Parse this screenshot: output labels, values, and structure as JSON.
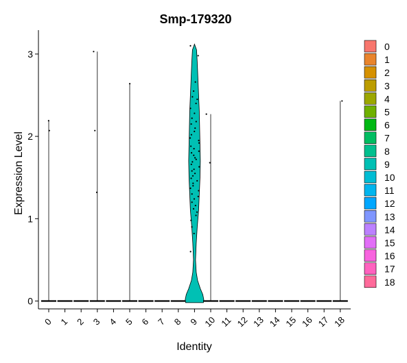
{
  "chart_data": {
    "type": "violin",
    "title": "Smp-179320",
    "xlabel": "Identity",
    "ylabel": "Expression Level",
    "ylim": [
      -0.1,
      3.3
    ],
    "yticks": [
      0,
      1,
      2,
      3
    ],
    "grid": false,
    "legend_position": "right",
    "categories": [
      "0",
      "1",
      "2",
      "3",
      "4",
      "5",
      "6",
      "7",
      "8",
      "9",
      "10",
      "11",
      "12",
      "13",
      "14",
      "15",
      "16",
      "17",
      "18"
    ],
    "colors": [
      "#F8766D",
      "#E9842C",
      "#D69100",
      "#BC9D00",
      "#9CA700",
      "#6FB000",
      "#00B813",
      "#00BD61",
      "#00C08E",
      "#00C0B4",
      "#00BDD4",
      "#00B5EE",
      "#00A7FF",
      "#7F96FF",
      "#BC81FF",
      "#E26EF7",
      "#F863DF",
      "#FF62BF",
      "#FF6A9A"
    ],
    "violins": [
      {
        "category": "0",
        "max": 2.19,
        "points": [
          2.19,
          2.07
        ]
      },
      {
        "category": "1",
        "max": 0,
        "points": []
      },
      {
        "category": "2",
        "max": 0,
        "points": []
      },
      {
        "category": "3",
        "max": 3.03,
        "points": [
          3.03,
          2.07,
          1.32
        ]
      },
      {
        "category": "4",
        "max": 0,
        "points": []
      },
      {
        "category": "5",
        "max": 2.64,
        "points": [
          2.64
        ]
      },
      {
        "category": "6",
        "max": 0,
        "points": []
      },
      {
        "category": "7",
        "max": 0,
        "points": []
      },
      {
        "category": "8",
        "max": 0,
        "points": []
      },
      {
        "category": "9",
        "max": 3.12,
        "points": [
          3.1,
          2.98,
          2.66,
          2.55,
          2.48,
          2.45,
          2.4,
          2.34,
          2.28,
          2.22,
          2.18,
          2.15,
          2.1,
          2.06,
          2.02,
          1.98,
          1.95,
          1.92,
          1.88,
          1.85,
          1.82,
          1.8,
          1.77,
          1.74,
          1.72,
          1.69,
          1.66,
          1.63,
          1.6,
          1.58,
          1.55,
          1.52,
          1.49,
          1.46,
          1.43,
          1.4,
          1.37,
          1.34,
          1.3,
          1.27,
          1.24,
          1.2,
          1.16,
          1.12,
          1.08,
          1.04,
          0.98,
          0.9,
          0.82,
          0.6
        ]
      },
      {
        "category": "10",
        "max": 2.27,
        "points": [
          2.27,
          1.68
        ]
      },
      {
        "category": "11",
        "max": 0,
        "points": []
      },
      {
        "category": "12",
        "max": 0,
        "points": []
      },
      {
        "category": "13",
        "max": 0,
        "points": []
      },
      {
        "category": "14",
        "max": 0,
        "points": []
      },
      {
        "category": "15",
        "max": 0,
        "points": []
      },
      {
        "category": "16",
        "max": 0,
        "points": []
      },
      {
        "category": "17",
        "max": 0,
        "points": []
      },
      {
        "category": "18",
        "max": 2.43,
        "points": [
          2.43
        ]
      }
    ]
  }
}
